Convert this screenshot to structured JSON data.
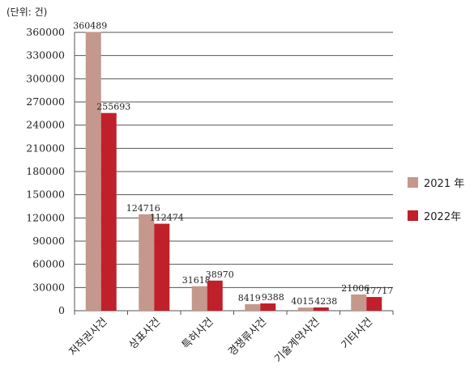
{
  "unit_label": "(단위: 건)",
  "chart_data": {
    "type": "bar",
    "categories": [
      "저작권사건",
      "상표사건",
      "특허사건",
      "경쟁류사건",
      "기술계약사건",
      "기타사건"
    ],
    "series": [
      {
        "name": "2021 年",
        "color": "#c4988c",
        "values": [
          360489,
          124716,
          31618,
          8419,
          4015,
          21006
        ]
      },
      {
        "name": "2022年",
        "color": "#c0202a",
        "values": [
          255693,
          112474,
          38970,
          9388,
          4238,
          17717
        ]
      }
    ],
    "ylim": [
      0,
      360000
    ],
    "yticks": [
      0,
      30000,
      60000,
      90000,
      120000,
      150000,
      180000,
      210000,
      240000,
      270000,
      300000,
      330000,
      360000
    ],
    "grid": true,
    "legend_position": "right"
  }
}
